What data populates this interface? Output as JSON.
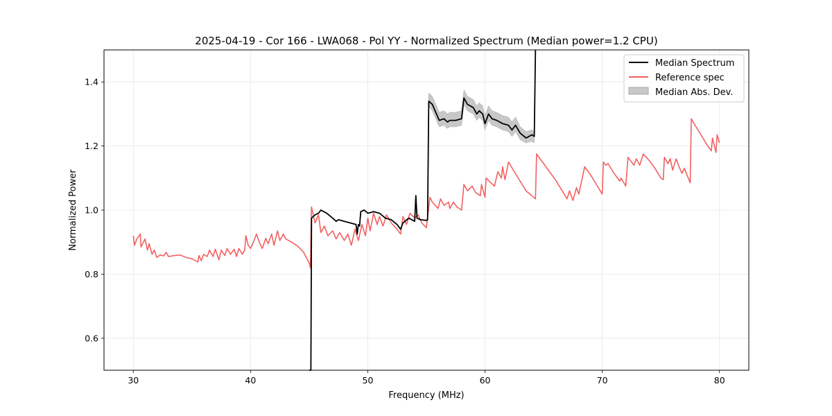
{
  "chart_data": {
    "type": "line",
    "title": "2025-04-19 - Cor 166 - LWA068 - Pol YY - Normalized Spectrum (Median power=1.2 CPU)",
    "xlabel": "Frequency (MHz)",
    "ylabel": "Normalized Power",
    "xlim": [
      27.5,
      82.5
    ],
    "ylim": [
      0.5,
      1.5
    ],
    "xticks": [
      30,
      40,
      50,
      60,
      70,
      80
    ],
    "yticks": [
      0.6,
      0.8,
      1.0,
      1.2,
      1.4
    ],
    "xtick_labels": [
      "30",
      "40",
      "50",
      "60",
      "70",
      "80"
    ],
    "ytick_labels": [
      "0.6",
      "0.8",
      "1.0",
      "1.2",
      "1.4"
    ],
    "grid": true,
    "legend_position": "top-right",
    "legend": [
      "Median Spectrum",
      "Reference spec",
      "Median Abs. Dev."
    ],
    "colors": {
      "median": "#000000",
      "reference": "#f26060",
      "mad": "#c8c8c8"
    },
    "series": [
      {
        "name": "Reference spec",
        "points": [
          [
            30.0,
            0.92
          ],
          [
            30.1,
            0.89
          ],
          [
            30.3,
            0.91
          ],
          [
            30.6,
            0.925
          ],
          [
            30.65,
            0.885
          ],
          [
            31.0,
            0.91
          ],
          [
            31.2,
            0.875
          ],
          [
            31.35,
            0.895
          ],
          [
            31.6,
            0.862
          ],
          [
            31.8,
            0.875
          ],
          [
            32.0,
            0.852
          ],
          [
            32.3,
            0.86
          ],
          [
            32.6,
            0.857
          ],
          [
            32.8,
            0.868
          ],
          [
            33.0,
            0.855
          ],
          [
            33.5,
            0.858
          ],
          [
            34.0,
            0.86
          ],
          [
            34.5,
            0.852
          ],
          [
            35.0,
            0.848
          ],
          [
            35.5,
            0.838
          ],
          [
            35.6,
            0.858
          ],
          [
            35.8,
            0.842
          ],
          [
            36.0,
            0.862
          ],
          [
            36.3,
            0.855
          ],
          [
            36.5,
            0.875
          ],
          [
            36.8,
            0.855
          ],
          [
            37.0,
            0.878
          ],
          [
            37.3,
            0.845
          ],
          [
            37.5,
            0.875
          ],
          [
            37.8,
            0.858
          ],
          [
            38.0,
            0.88
          ],
          [
            38.3,
            0.862
          ],
          [
            38.6,
            0.878
          ],
          [
            38.8,
            0.855
          ],
          [
            39.0,
            0.88
          ],
          [
            39.3,
            0.862
          ],
          [
            39.5,
            0.875
          ],
          [
            39.6,
            0.92
          ],
          [
            39.8,
            0.89
          ],
          [
            40.0,
            0.88
          ],
          [
            40.3,
            0.905
          ],
          [
            40.5,
            0.925
          ],
          [
            40.8,
            0.895
          ],
          [
            41.0,
            0.88
          ],
          [
            41.3,
            0.912
          ],
          [
            41.5,
            0.895
          ],
          [
            41.8,
            0.925
          ],
          [
            42.0,
            0.89
          ],
          [
            42.3,
            0.935
          ],
          [
            42.5,
            0.905
          ],
          [
            42.8,
            0.925
          ],
          [
            43.0,
            0.91
          ],
          [
            43.5,
            0.9
          ],
          [
            44.0,
            0.888
          ],
          [
            44.5,
            0.87
          ],
          [
            45.0,
            0.835
          ],
          [
            45.1,
            0.82
          ],
          [
            45.2,
            1.01
          ],
          [
            45.5,
            0.96
          ],
          [
            45.8,
            0.985
          ],
          [
            46.0,
            0.93
          ],
          [
            46.3,
            0.95
          ],
          [
            46.6,
            0.92
          ],
          [
            47.0,
            0.935
          ],
          [
            47.3,
            0.91
          ],
          [
            47.6,
            0.93
          ],
          [
            48.0,
            0.905
          ],
          [
            48.3,
            0.925
          ],
          [
            48.6,
            0.89
          ],
          [
            48.9,
            0.94
          ],
          [
            49.2,
            0.905
          ],
          [
            49.5,
            0.955
          ],
          [
            49.8,
            0.92
          ],
          [
            50.0,
            0.975
          ],
          [
            50.2,
            0.935
          ],
          [
            50.5,
            0.99
          ],
          [
            50.8,
            0.955
          ],
          [
            51.0,
            0.98
          ],
          [
            51.3,
            0.95
          ],
          [
            51.6,
            0.985
          ],
          [
            52.0,
            0.96
          ],
          [
            52.5,
            0.94
          ],
          [
            52.8,
            0.925
          ],
          [
            53.0,
            0.98
          ],
          [
            53.3,
            0.955
          ],
          [
            53.6,
            0.99
          ],
          [
            54.0,
            0.975
          ],
          [
            54.3,
            0.985
          ],
          [
            54.6,
            0.96
          ],
          [
            55.0,
            0.945
          ],
          [
            55.3,
            1.04
          ],
          [
            55.5,
            1.025
          ],
          [
            56.0,
            1.005
          ],
          [
            56.2,
            1.035
          ],
          [
            56.5,
            1.015
          ],
          [
            56.9,
            1.025
          ],
          [
            57.0,
            1.005
          ],
          [
            57.3,
            1.025
          ],
          [
            57.6,
            1.01
          ],
          [
            58.0,
            1.0
          ],
          [
            58.2,
            1.08
          ],
          [
            58.5,
            1.06
          ],
          [
            58.9,
            1.075
          ],
          [
            59.2,
            1.055
          ],
          [
            59.6,
            1.045
          ],
          [
            59.7,
            1.08
          ],
          [
            60.0,
            1.04
          ],
          [
            60.1,
            1.1
          ],
          [
            60.5,
            1.085
          ],
          [
            60.8,
            1.075
          ],
          [
            61.1,
            1.12
          ],
          [
            61.4,
            1.1
          ],
          [
            61.5,
            1.135
          ],
          [
            61.7,
            1.095
          ],
          [
            62.0,
            1.15
          ],
          [
            62.5,
            1.12
          ],
          [
            63.0,
            1.09
          ],
          [
            63.5,
            1.06
          ],
          [
            64.3,
            1.035
          ],
          [
            64.4,
            1.175
          ],
          [
            65.0,
            1.145
          ],
          [
            65.5,
            1.12
          ],
          [
            66.0,
            1.095
          ],
          [
            66.5,
            1.065
          ],
          [
            67.0,
            1.035
          ],
          [
            67.2,
            1.06
          ],
          [
            67.5,
            1.03
          ],
          [
            67.8,
            1.07
          ],
          [
            68.0,
            1.05
          ],
          [
            68.5,
            1.135
          ],
          [
            69.0,
            1.11
          ],
          [
            69.5,
            1.08
          ],
          [
            70.0,
            1.05
          ],
          [
            70.1,
            1.15
          ],
          [
            70.3,
            1.14
          ],
          [
            70.5,
            1.145
          ],
          [
            71.0,
            1.115
          ],
          [
            71.5,
            1.09
          ],
          [
            71.6,
            1.1
          ],
          [
            72.0,
            1.075
          ],
          [
            72.2,
            1.165
          ],
          [
            72.7,
            1.14
          ],
          [
            72.9,
            1.16
          ],
          [
            73.2,
            1.14
          ],
          [
            73.5,
            1.175
          ],
          [
            74.0,
            1.155
          ],
          [
            74.5,
            1.13
          ],
          [
            75.0,
            1.1
          ],
          [
            75.2,
            1.095
          ],
          [
            75.3,
            1.165
          ],
          [
            75.6,
            1.145
          ],
          [
            75.8,
            1.16
          ],
          [
            76.0,
            1.125
          ],
          [
            76.3,
            1.16
          ],
          [
            76.5,
            1.14
          ],
          [
            76.8,
            1.115
          ],
          [
            77.0,
            1.13
          ],
          [
            77.5,
            1.085
          ],
          [
            77.6,
            1.285
          ],
          [
            78.0,
            1.26
          ],
          [
            78.5,
            1.23
          ],
          [
            79.0,
            1.2
          ],
          [
            79.3,
            1.185
          ],
          [
            79.4,
            1.225
          ],
          [
            79.7,
            1.18
          ],
          [
            79.8,
            1.235
          ],
          [
            80.0,
            1.21
          ]
        ]
      },
      {
        "name": "Median Spectrum",
        "points": [
          [
            45.0,
            0.5
          ],
          [
            45.15,
            0.5
          ],
          [
            45.2,
            0.975
          ],
          [
            45.5,
            0.985
          ],
          [
            45.8,
            0.99
          ],
          [
            46.0,
            1.0
          ],
          [
            46.5,
            0.99
          ],
          [
            47.0,
            0.975
          ],
          [
            47.3,
            0.965
          ],
          [
            47.5,
            0.97
          ],
          [
            48.0,
            0.965
          ],
          [
            48.5,
            0.96
          ],
          [
            49.0,
            0.955
          ],
          [
            49.1,
            0.925
          ],
          [
            49.2,
            0.955
          ],
          [
            49.3,
            0.95
          ],
          [
            49.4,
            0.995
          ],
          [
            49.7,
            1.0
          ],
          [
            50.0,
            0.99
          ],
          [
            50.5,
            0.995
          ],
          [
            51.0,
            0.99
          ],
          [
            51.5,
            0.975
          ],
          [
            52.0,
            0.97
          ],
          [
            52.5,
            0.955
          ],
          [
            52.8,
            0.94
          ],
          [
            53.0,
            0.96
          ],
          [
            53.5,
            0.975
          ],
          [
            54.0,
            0.965
          ],
          [
            54.1,
            1.045
          ],
          [
            54.2,
            0.975
          ],
          [
            54.5,
            0.97
          ],
          [
            55.0,
            0.968
          ],
          [
            55.1,
            0.97
          ],
          [
            55.2,
            1.34
          ],
          [
            55.5,
            1.33
          ],
          [
            55.8,
            1.305
          ],
          [
            56.1,
            1.28
          ],
          [
            56.5,
            1.285
          ],
          [
            56.8,
            1.275
          ],
          [
            57.0,
            1.28
          ],
          [
            57.5,
            1.28
          ],
          [
            58.0,
            1.285
          ],
          [
            58.2,
            1.35
          ],
          [
            58.5,
            1.33
          ],
          [
            59.0,
            1.32
          ],
          [
            59.3,
            1.3
          ],
          [
            59.5,
            1.31
          ],
          [
            59.8,
            1.3
          ],
          [
            60.0,
            1.27
          ],
          [
            60.3,
            1.3
          ],
          [
            60.6,
            1.285
          ],
          [
            61.0,
            1.28
          ],
          [
            61.5,
            1.27
          ],
          [
            62.0,
            1.265
          ],
          [
            62.3,
            1.25
          ],
          [
            62.6,
            1.265
          ],
          [
            63.0,
            1.24
          ],
          [
            63.5,
            1.225
          ],
          [
            64.0,
            1.235
          ],
          [
            64.2,
            1.23
          ],
          [
            64.3,
            1.5
          ]
        ]
      },
      {
        "name": "Median Abs. Dev.",
        "band": [
          [
            55.2,
            1.325,
            1.365
          ],
          [
            55.5,
            1.31,
            1.355
          ],
          [
            55.8,
            1.285,
            1.33
          ],
          [
            56.1,
            1.26,
            1.305
          ],
          [
            56.5,
            1.265,
            1.31
          ],
          [
            56.8,
            1.255,
            1.3
          ],
          [
            57.0,
            1.26,
            1.305
          ],
          [
            57.5,
            1.26,
            1.305
          ],
          [
            58.0,
            1.265,
            1.31
          ],
          [
            58.2,
            1.33,
            1.375
          ],
          [
            58.5,
            1.31,
            1.355
          ],
          [
            59.0,
            1.3,
            1.345
          ],
          [
            59.3,
            1.28,
            1.325
          ],
          [
            59.5,
            1.29,
            1.335
          ],
          [
            59.8,
            1.28,
            1.325
          ],
          [
            60.0,
            1.25,
            1.295
          ],
          [
            60.3,
            1.28,
            1.325
          ],
          [
            60.6,
            1.265,
            1.31
          ],
          [
            61.0,
            1.26,
            1.305
          ],
          [
            61.5,
            1.25,
            1.295
          ],
          [
            62.0,
            1.245,
            1.29
          ],
          [
            62.3,
            1.23,
            1.275
          ],
          [
            62.6,
            1.245,
            1.29
          ],
          [
            63.0,
            1.22,
            1.26
          ],
          [
            63.5,
            1.21,
            1.245
          ],
          [
            64.0,
            1.215,
            1.25
          ],
          [
            64.2,
            1.21,
            1.245
          ]
        ]
      }
    ]
  }
}
